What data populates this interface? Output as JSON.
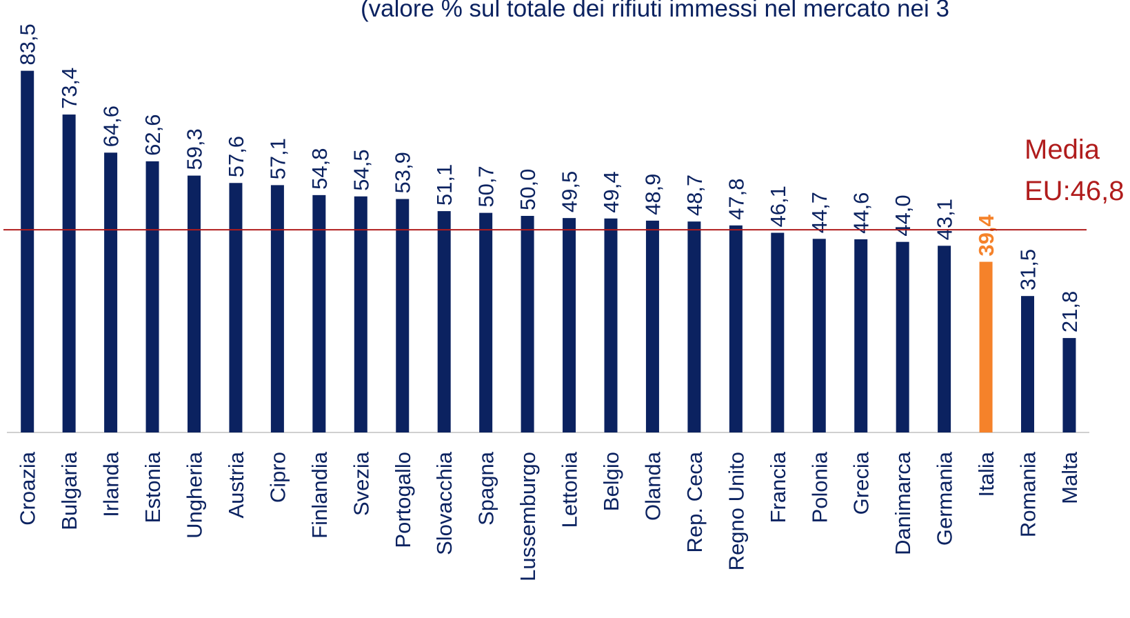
{
  "chart_data": {
    "type": "bar",
    "subtitle": "(valore % sul totale dei rifiuti immessi nel mercato nei 3",
    "categories": [
      "Croazia",
      "Bulgaria",
      "Irlanda",
      "Estonia",
      "Ungheria",
      "Austria",
      "Cipro",
      "Finlandia",
      "Svezia",
      "Portogallo",
      "Slovacchia",
      "Spagna",
      "Lussemburgo",
      "Lettonia",
      "Belgio",
      "Olanda",
      "Rep. Ceca",
      "Regno Unito",
      "Francia",
      "Polonia",
      "Grecia",
      "Danimarca",
      "Germania",
      "Italia",
      "Romania",
      "Malta"
    ],
    "values": [
      83.5,
      73.4,
      64.6,
      62.6,
      59.3,
      57.6,
      57.1,
      54.8,
      54.5,
      53.9,
      51.1,
      50.7,
      50.0,
      49.5,
      49.4,
      48.9,
      48.7,
      47.8,
      46.1,
      44.7,
      44.6,
      44.0,
      43.1,
      39.4,
      31.5,
      21.8
    ],
    "value_labels": [
      "83,5",
      "73,4",
      "64,6",
      "62,6",
      "59,3",
      "57,6",
      "57,1",
      "54,8",
      "54,5",
      "53,9",
      "51,1",
      "50,7",
      "50,0",
      "49,5",
      "49,4",
      "48,9",
      "48,7",
      "47,8",
      "46,1",
      "44,7",
      "44,6",
      "44,0",
      "43,1",
      "39,4",
      "31,5",
      "21,8"
    ],
    "color": "#0b2260",
    "highlight": {
      "index": 23,
      "color": "#f5822a"
    },
    "ylim": [
      0,
      100
    ],
    "average": {
      "value": 46.8,
      "label_lines": [
        "Media",
        "EU:46,8"
      ],
      "color": "#b01c1c"
    }
  }
}
